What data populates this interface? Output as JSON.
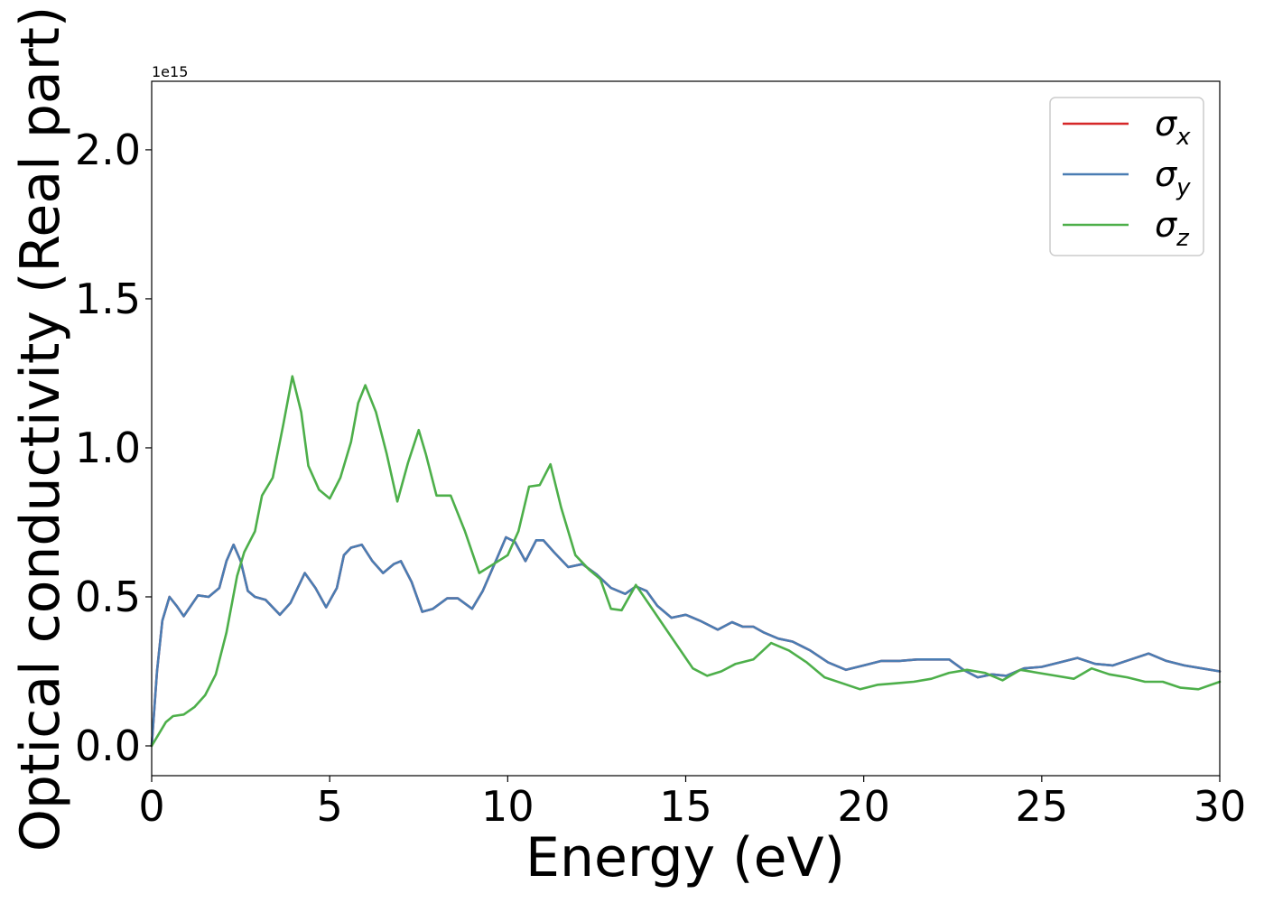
{
  "chart_data": {
    "type": "line",
    "title": "",
    "xlabel": "Energy (eV)",
    "ylabel": "Optical conductivity (Real part)",
    "y_offset_text": "1e15",
    "xlim": [
      0,
      30
    ],
    "ylim": [
      -0.1,
      2.23
    ],
    "x_ticks": [
      0,
      5,
      10,
      15,
      20,
      25,
      30
    ],
    "x_tick_labels": [
      "0",
      "5",
      "10",
      "15",
      "20",
      "25",
      "30"
    ],
    "y_ticks": [
      0.0,
      0.5,
      1.0,
      1.5,
      2.0
    ],
    "y_tick_labels": [
      "0.0",
      "0.5",
      "1.0",
      "1.5",
      "2.0"
    ],
    "grid": false,
    "legend_position": "top-right",
    "series": [
      {
        "name": "σx",
        "legend_base": "σ",
        "legend_sub": "x",
        "color": "#d62728",
        "points": [
          [
            0,
            0.0
          ],
          [
            0.15,
            0.25
          ],
          [
            0.3,
            0.42
          ],
          [
            0.5,
            0.5
          ],
          [
            0.7,
            0.47
          ],
          [
            0.9,
            0.435
          ],
          [
            1.1,
            0.47
          ],
          [
            1.3,
            0.505
          ],
          [
            1.6,
            0.5
          ],
          [
            1.9,
            0.53
          ],
          [
            2.1,
            0.62
          ],
          [
            2.3,
            0.675
          ],
          [
            2.5,
            0.62
          ],
          [
            2.7,
            0.52
          ],
          [
            2.9,
            0.5
          ],
          [
            3.2,
            0.49
          ],
          [
            3.6,
            0.44
          ],
          [
            3.9,
            0.48
          ],
          [
            4.3,
            0.58
          ],
          [
            4.6,
            0.53
          ],
          [
            4.9,
            0.465
          ],
          [
            5.2,
            0.53
          ],
          [
            5.4,
            0.64
          ],
          [
            5.6,
            0.665
          ],
          [
            5.9,
            0.675
          ],
          [
            6.2,
            0.62
          ],
          [
            6.5,
            0.58
          ],
          [
            6.8,
            0.61
          ],
          [
            7.0,
            0.62
          ],
          [
            7.3,
            0.55
          ],
          [
            7.6,
            0.45
          ],
          [
            7.9,
            0.46
          ],
          [
            8.3,
            0.495
          ],
          [
            8.6,
            0.495
          ],
          [
            9.0,
            0.46
          ],
          [
            9.3,
            0.52
          ],
          [
            9.7,
            0.63
          ],
          [
            9.95,
            0.7
          ],
          [
            10.2,
            0.685
          ],
          [
            10.5,
            0.62
          ],
          [
            10.8,
            0.69
          ],
          [
            11.0,
            0.69
          ],
          [
            11.3,
            0.65
          ],
          [
            11.7,
            0.6
          ],
          [
            12.1,
            0.61
          ],
          [
            12.5,
            0.575
          ],
          [
            12.9,
            0.53
          ],
          [
            13.3,
            0.51
          ],
          [
            13.6,
            0.535
          ],
          [
            13.9,
            0.52
          ],
          [
            14.2,
            0.47
          ],
          [
            14.6,
            0.43
          ],
          [
            15.0,
            0.44
          ],
          [
            15.4,
            0.42
          ],
          [
            15.9,
            0.39
          ],
          [
            16.3,
            0.415
          ],
          [
            16.6,
            0.4
          ],
          [
            16.9,
            0.4
          ],
          [
            17.2,
            0.38
          ],
          [
            17.6,
            0.36
          ],
          [
            18.0,
            0.35
          ],
          [
            18.5,
            0.32
          ],
          [
            19.0,
            0.28
          ],
          [
            19.5,
            0.255
          ],
          [
            20.0,
            0.27
          ],
          [
            20.5,
            0.285
          ],
          [
            21.0,
            0.285
          ],
          [
            21.5,
            0.29
          ],
          [
            22.0,
            0.29
          ],
          [
            22.4,
            0.29
          ],
          [
            22.8,
            0.255
          ],
          [
            23.2,
            0.23
          ],
          [
            23.6,
            0.24
          ],
          [
            24.0,
            0.235
          ],
          [
            24.5,
            0.26
          ],
          [
            25.0,
            0.265
          ],
          [
            25.5,
            0.28
          ],
          [
            26.0,
            0.295
          ],
          [
            26.5,
            0.275
          ],
          [
            27.0,
            0.27
          ],
          [
            27.5,
            0.29
          ],
          [
            28.0,
            0.31
          ],
          [
            28.5,
            0.285
          ],
          [
            29.0,
            0.27
          ],
          [
            29.5,
            0.26
          ],
          [
            30.0,
            0.25
          ]
        ]
      },
      {
        "name": "σy",
        "legend_base": "σ",
        "legend_sub": "y",
        "color": "#4a7db3",
        "points": [
          [
            0,
            0.0
          ],
          [
            0.15,
            0.25
          ],
          [
            0.3,
            0.42
          ],
          [
            0.5,
            0.5
          ],
          [
            0.7,
            0.47
          ],
          [
            0.9,
            0.435
          ],
          [
            1.1,
            0.47
          ],
          [
            1.3,
            0.505
          ],
          [
            1.6,
            0.5
          ],
          [
            1.9,
            0.53
          ],
          [
            2.1,
            0.62
          ],
          [
            2.3,
            0.675
          ],
          [
            2.5,
            0.62
          ],
          [
            2.7,
            0.52
          ],
          [
            2.9,
            0.5
          ],
          [
            3.2,
            0.49
          ],
          [
            3.6,
            0.44
          ],
          [
            3.9,
            0.48
          ],
          [
            4.3,
            0.58
          ],
          [
            4.6,
            0.53
          ],
          [
            4.9,
            0.465
          ],
          [
            5.2,
            0.53
          ],
          [
            5.4,
            0.64
          ],
          [
            5.6,
            0.665
          ],
          [
            5.9,
            0.675
          ],
          [
            6.2,
            0.62
          ],
          [
            6.5,
            0.58
          ],
          [
            6.8,
            0.61
          ],
          [
            7.0,
            0.62
          ],
          [
            7.3,
            0.55
          ],
          [
            7.6,
            0.45
          ],
          [
            7.9,
            0.46
          ],
          [
            8.3,
            0.495
          ],
          [
            8.6,
            0.495
          ],
          [
            9.0,
            0.46
          ],
          [
            9.3,
            0.52
          ],
          [
            9.7,
            0.63
          ],
          [
            9.95,
            0.7
          ],
          [
            10.2,
            0.685
          ],
          [
            10.5,
            0.62
          ],
          [
            10.8,
            0.69
          ],
          [
            11.0,
            0.69
          ],
          [
            11.3,
            0.65
          ],
          [
            11.7,
            0.6
          ],
          [
            12.1,
            0.61
          ],
          [
            12.5,
            0.575
          ],
          [
            12.9,
            0.53
          ],
          [
            13.3,
            0.51
          ],
          [
            13.6,
            0.535
          ],
          [
            13.9,
            0.52
          ],
          [
            14.2,
            0.47
          ],
          [
            14.6,
            0.43
          ],
          [
            15.0,
            0.44
          ],
          [
            15.4,
            0.42
          ],
          [
            15.9,
            0.39
          ],
          [
            16.3,
            0.415
          ],
          [
            16.6,
            0.4
          ],
          [
            16.9,
            0.4
          ],
          [
            17.2,
            0.38
          ],
          [
            17.6,
            0.36
          ],
          [
            18.0,
            0.35
          ],
          [
            18.5,
            0.32
          ],
          [
            19.0,
            0.28
          ],
          [
            19.5,
            0.255
          ],
          [
            20.0,
            0.27
          ],
          [
            20.5,
            0.285
          ],
          [
            21.0,
            0.285
          ],
          [
            21.5,
            0.29
          ],
          [
            22.0,
            0.29
          ],
          [
            22.4,
            0.29
          ],
          [
            22.8,
            0.255
          ],
          [
            23.2,
            0.23
          ],
          [
            23.6,
            0.24
          ],
          [
            24.0,
            0.235
          ],
          [
            24.5,
            0.26
          ],
          [
            25.0,
            0.265
          ],
          [
            25.5,
            0.28
          ],
          [
            26.0,
            0.295
          ],
          [
            26.5,
            0.275
          ],
          [
            27.0,
            0.27
          ],
          [
            27.5,
            0.29
          ],
          [
            28.0,
            0.31
          ],
          [
            28.5,
            0.285
          ],
          [
            29.0,
            0.27
          ],
          [
            29.5,
            0.26
          ],
          [
            30.0,
            0.25
          ]
        ]
      },
      {
        "name": "σz",
        "legend_base": "σ",
        "legend_sub": "z",
        "color": "#4daf4a",
        "points": [
          [
            0,
            0.0
          ],
          [
            0.2,
            0.04
          ],
          [
            0.4,
            0.08
          ],
          [
            0.6,
            0.1
          ],
          [
            0.9,
            0.105
          ],
          [
            1.2,
            0.13
          ],
          [
            1.5,
            0.17
          ],
          [
            1.8,
            0.24
          ],
          [
            2.1,
            0.38
          ],
          [
            2.4,
            0.57
          ],
          [
            2.6,
            0.65
          ],
          [
            2.9,
            0.72
          ],
          [
            3.1,
            0.84
          ],
          [
            3.4,
            0.9
          ],
          [
            3.7,
            1.08
          ],
          [
            3.95,
            1.24
          ],
          [
            4.2,
            1.12
          ],
          [
            4.4,
            0.94
          ],
          [
            4.7,
            0.86
          ],
          [
            5.0,
            0.83
          ],
          [
            5.3,
            0.9
          ],
          [
            5.6,
            1.02
          ],
          [
            5.8,
            1.15
          ],
          [
            6.0,
            1.21
          ],
          [
            6.3,
            1.12
          ],
          [
            6.6,
            0.98
          ],
          [
            6.9,
            0.82
          ],
          [
            7.2,
            0.95
          ],
          [
            7.5,
            1.06
          ],
          [
            7.7,
            0.98
          ],
          [
            8.0,
            0.84
          ],
          [
            8.4,
            0.84
          ],
          [
            8.8,
            0.72
          ],
          [
            9.2,
            0.58
          ],
          [
            9.6,
            0.61
          ],
          [
            10.0,
            0.64
          ],
          [
            10.3,
            0.72
          ],
          [
            10.6,
            0.87
          ],
          [
            10.9,
            0.875
          ],
          [
            11.2,
            0.945
          ],
          [
            11.5,
            0.8
          ],
          [
            11.9,
            0.64
          ],
          [
            12.3,
            0.59
          ],
          [
            12.6,
            0.56
          ],
          [
            12.9,
            0.46
          ],
          [
            13.2,
            0.455
          ],
          [
            13.6,
            0.54
          ],
          [
            14.0,
            0.47
          ],
          [
            14.4,
            0.4
          ],
          [
            14.8,
            0.33
          ],
          [
            15.2,
            0.26
          ],
          [
            15.6,
            0.235
          ],
          [
            16.0,
            0.25
          ],
          [
            16.4,
            0.275
          ],
          [
            16.9,
            0.29
          ],
          [
            17.4,
            0.345
          ],
          [
            17.9,
            0.32
          ],
          [
            18.4,
            0.28
          ],
          [
            18.9,
            0.23
          ],
          [
            19.4,
            0.21
          ],
          [
            19.9,
            0.19
          ],
          [
            20.4,
            0.205
          ],
          [
            20.9,
            0.21
          ],
          [
            21.4,
            0.215
          ],
          [
            21.9,
            0.225
          ],
          [
            22.4,
            0.245
          ],
          [
            22.9,
            0.255
          ],
          [
            23.4,
            0.245
          ],
          [
            23.9,
            0.22
          ],
          [
            24.4,
            0.255
          ],
          [
            24.9,
            0.245
          ],
          [
            25.4,
            0.235
          ],
          [
            25.9,
            0.225
          ],
          [
            26.4,
            0.26
          ],
          [
            26.9,
            0.24
          ],
          [
            27.4,
            0.23
          ],
          [
            27.9,
            0.215
          ],
          [
            28.4,
            0.215
          ],
          [
            28.9,
            0.195
          ],
          [
            29.4,
            0.19
          ],
          [
            30.0,
            0.215
          ]
        ]
      }
    ]
  }
}
